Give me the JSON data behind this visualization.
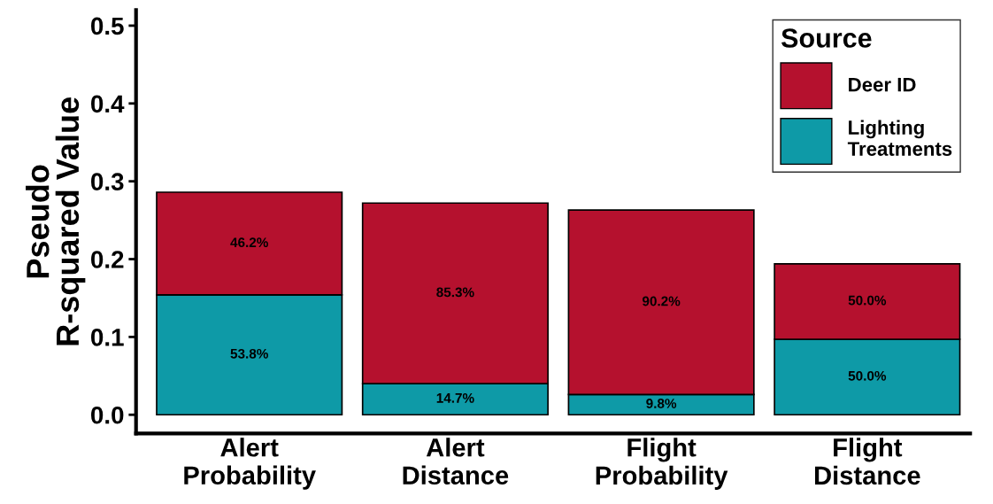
{
  "chart_data": {
    "type": "bar",
    "stacked": true,
    "ylabel": "Pseudo\nR-squared Value",
    "legend_title": "Source",
    "legend": "top right",
    "grid": false,
    "categories": [
      "Alert\nProbability",
      "Alert\nDistance",
      "Flight\nProbability",
      "Flight\nDistance"
    ],
    "series": [
      {
        "name": "Lighting\nTreatments",
        "color": "#0e9aa7",
        "values": [
          0.154,
          0.04,
          0.026,
          0.097
        ]
      },
      {
        "name": "Deer ID",
        "color": "#b5112e",
        "values": [
          0.132,
          0.232,
          0.237,
          0.097
        ]
      }
    ],
    "annotations": [
      "53.8%",
      "46.2%",
      "14.7%",
      "85.3%",
      "9.8%",
      "90.2%",
      "50.0%",
      "50.0%"
    ],
    "ylim": [
      -0.024,
      0.52
    ],
    "yticks": [
      {
        "value": 0,
        "label": "0.0"
      },
      {
        "value": 0.1,
        "label": "0.1"
      },
      {
        "value": 0.2,
        "label": "0.2"
      },
      {
        "value": 0.3,
        "label": "0.3"
      },
      {
        "value": 0.4,
        "label": "0.4"
      },
      {
        "value": 0.5,
        "label": "0.5"
      }
    ]
  }
}
